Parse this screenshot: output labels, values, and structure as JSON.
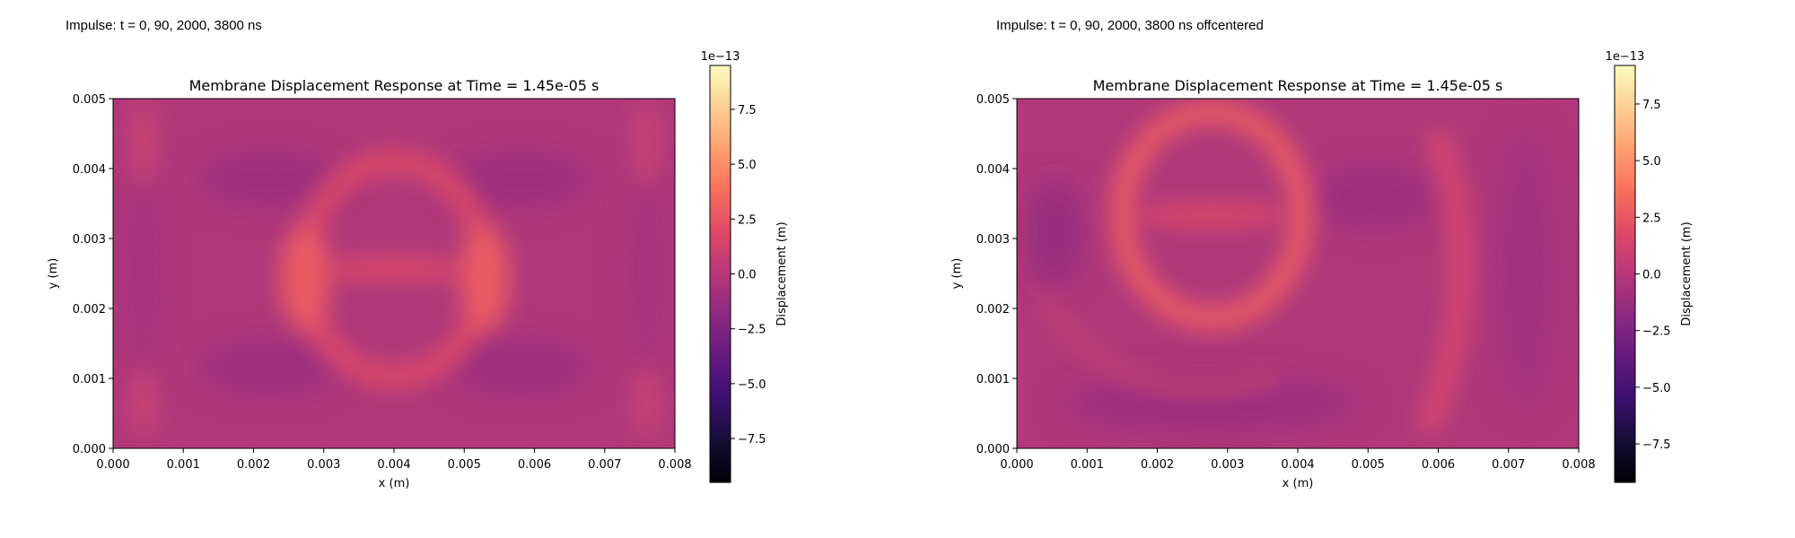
{
  "captions": [
    "Impulse: t = 0, 90, 2000, 3800 ns",
    "Impulse: t = 0, 90, 2000, 3800 ns offcentered"
  ],
  "chart_data": [
    {
      "type": "heatmap",
      "title": "Membrane Displacement Response at Time = 1.45e-05 s",
      "xlabel": "x (m)",
      "ylabel": "y (m)",
      "xlim": [
        0,
        0.008
      ],
      "ylim": [
        0,
        0.005
      ],
      "x_ticks": [
        "0.000",
        "0.001",
        "0.002",
        "0.003",
        "0.004",
        "0.005",
        "0.006",
        "0.007",
        "0.008"
      ],
      "y_ticks": [
        "0.000",
        "0.001",
        "0.002",
        "0.003",
        "0.004",
        "0.005"
      ],
      "colormap": "magma",
      "colorbar": {
        "label": "Displacement (m)",
        "multiplier": "1e−13",
        "range": [
          -9.5,
          9.5
        ],
        "ticks": [
          "−7.5",
          "−5.0",
          "−2.5",
          "0.0",
          "2.5",
          "5.0",
          "7.5"
        ]
      },
      "grid": false
    },
    {
      "type": "heatmap",
      "title": "Membrane Displacement Response at Time = 1.45e-05 s",
      "xlabel": "x (m)",
      "ylabel": "y (m)",
      "xlim": [
        0,
        0.008
      ],
      "ylim": [
        0,
        0.005
      ],
      "x_ticks": [
        "0.000",
        "0.001",
        "0.002",
        "0.003",
        "0.004",
        "0.005",
        "0.006",
        "0.007",
        "0.008"
      ],
      "y_ticks": [
        "0.000",
        "0.001",
        "0.002",
        "0.003",
        "0.004",
        "0.005"
      ],
      "colormap": "magma",
      "colorbar": {
        "label": "Displacement (m)",
        "multiplier": "1e−13",
        "range": [
          -9.2,
          9.2
        ],
        "ticks": [
          "−7.5",
          "−5.0",
          "−2.5",
          "0.0",
          "2.5",
          "5.0",
          "7.5"
        ]
      },
      "grid": false
    }
  ]
}
